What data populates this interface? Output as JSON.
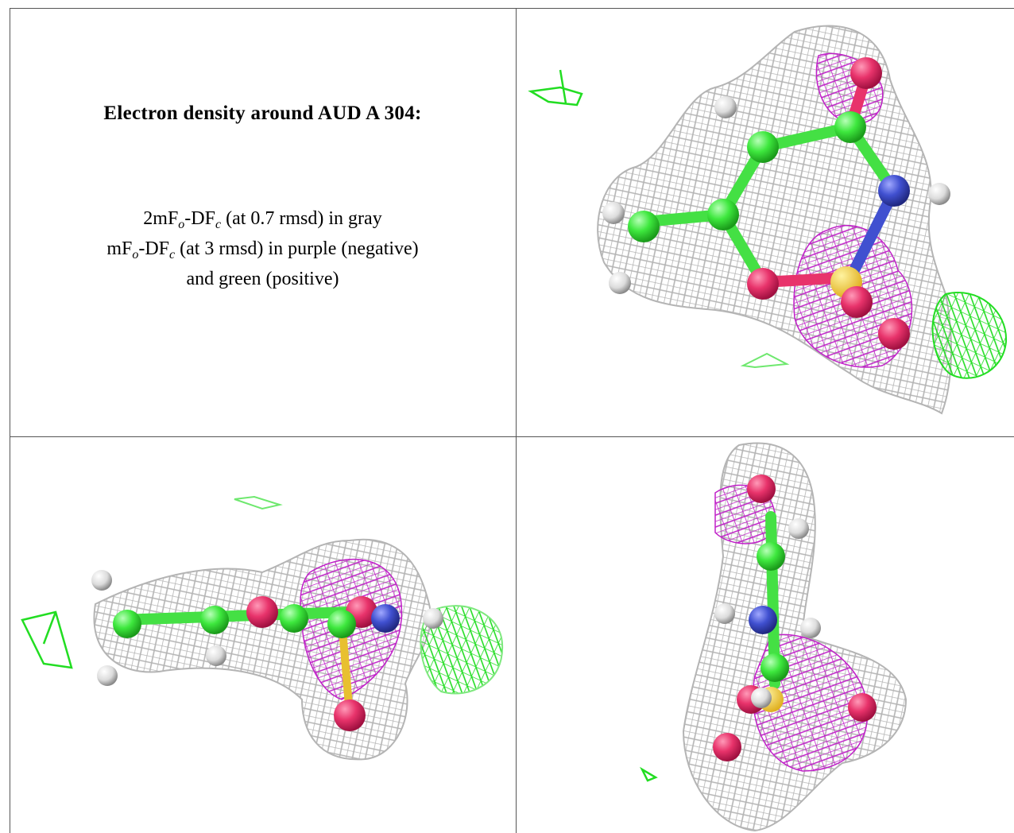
{
  "figure": {
    "title": "Electron density around AUD A 304:",
    "lines": [
      [
        "2mF",
        "o",
        "-DF",
        "c",
        " (at 0.7 rmsd) in gray"
      ],
      [
        "mF",
        "o",
        "-DF",
        "c",
        " (at 3 rmsd) in purple (negative)"
      ],
      [
        "and green (positive)"
      ]
    ]
  }
}
